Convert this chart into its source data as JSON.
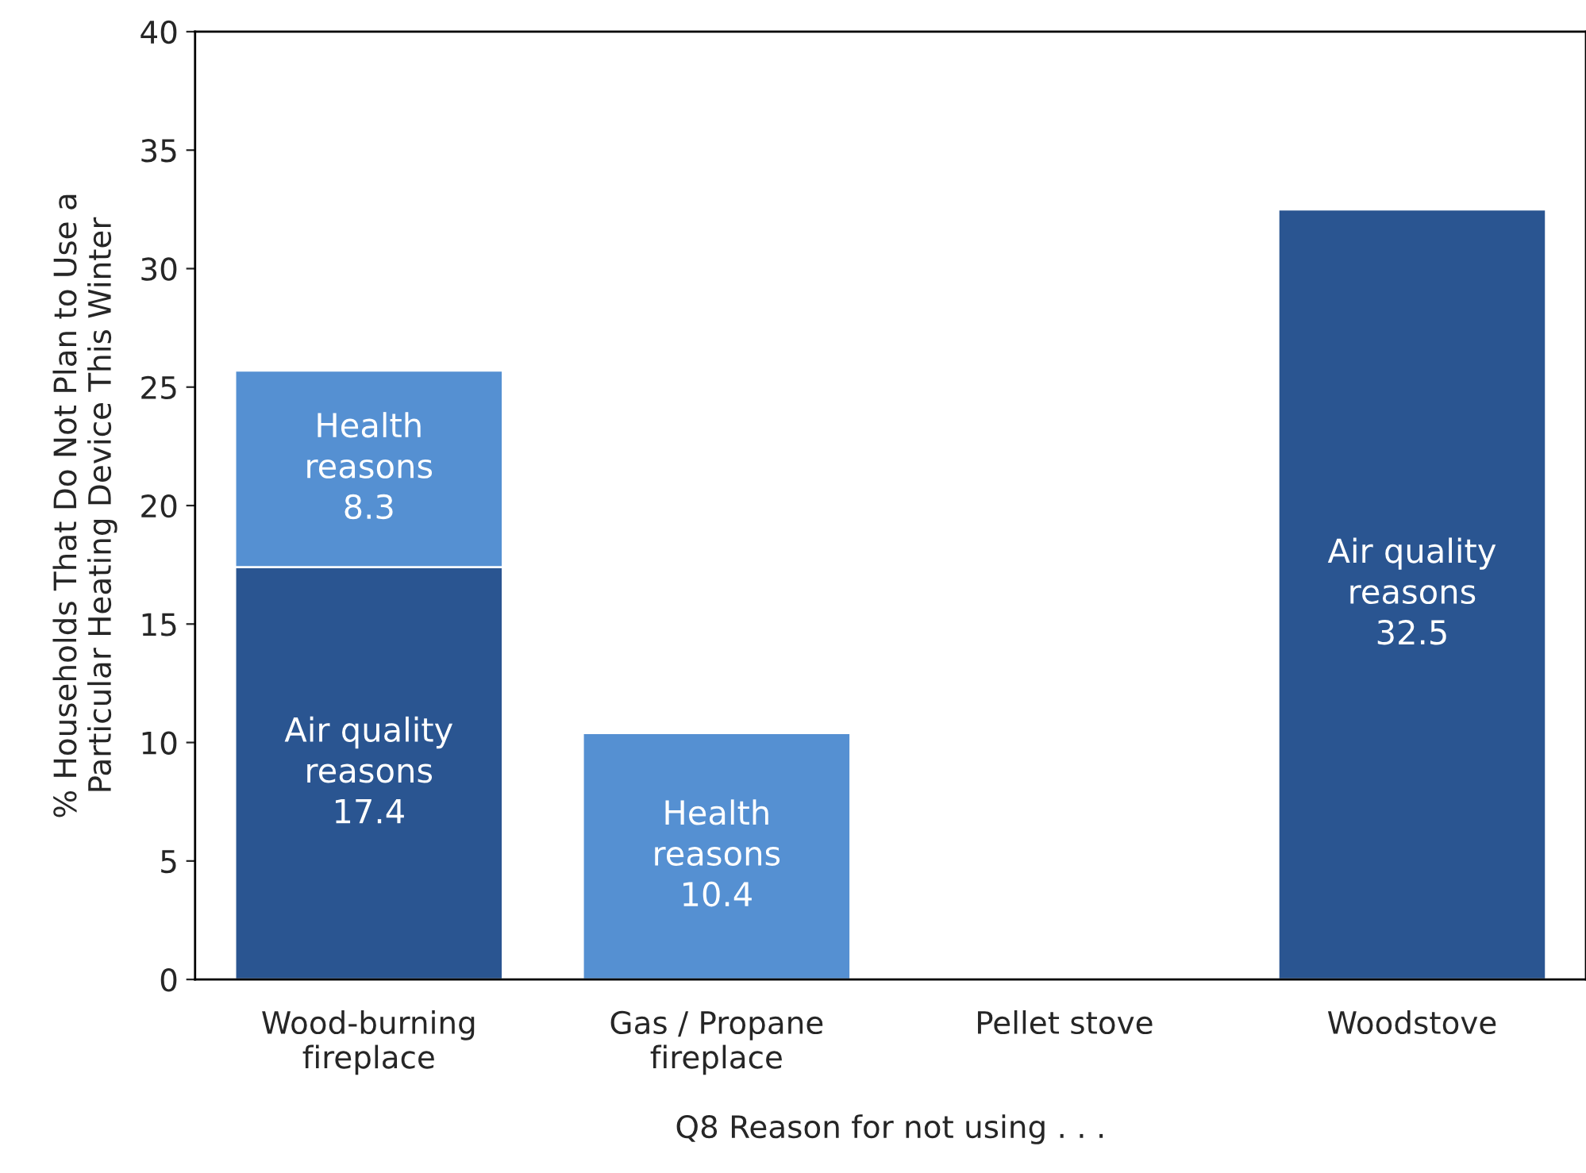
{
  "chart_data": {
    "type": "bar",
    "stacked": true,
    "data_labels": true,
    "categories": [
      "Wood-burning\nfireplace",
      "Gas / Propane\nfireplace",
      "Pellet stove",
      "Woodstove"
    ],
    "xlabel": "Q8 Reason for not using . . .",
    "ylabel": "% Households That Do Not Plan to Use a\nParticular Heating Device This Winter",
    "ylim": [
      0,
      40
    ],
    "yticks": [
      0,
      5,
      10,
      15,
      20,
      25,
      30,
      35,
      40
    ],
    "grid": false,
    "legend": false,
    "series": [
      {
        "name": "Air quality\nreasons",
        "color": "#2a5591",
        "values": [
          17.4,
          null,
          null,
          32.5
        ]
      },
      {
        "name": "Health\nreasons",
        "color": "#5590d2",
        "values": [
          8.3,
          10.4,
          null,
          null
        ]
      }
    ]
  }
}
